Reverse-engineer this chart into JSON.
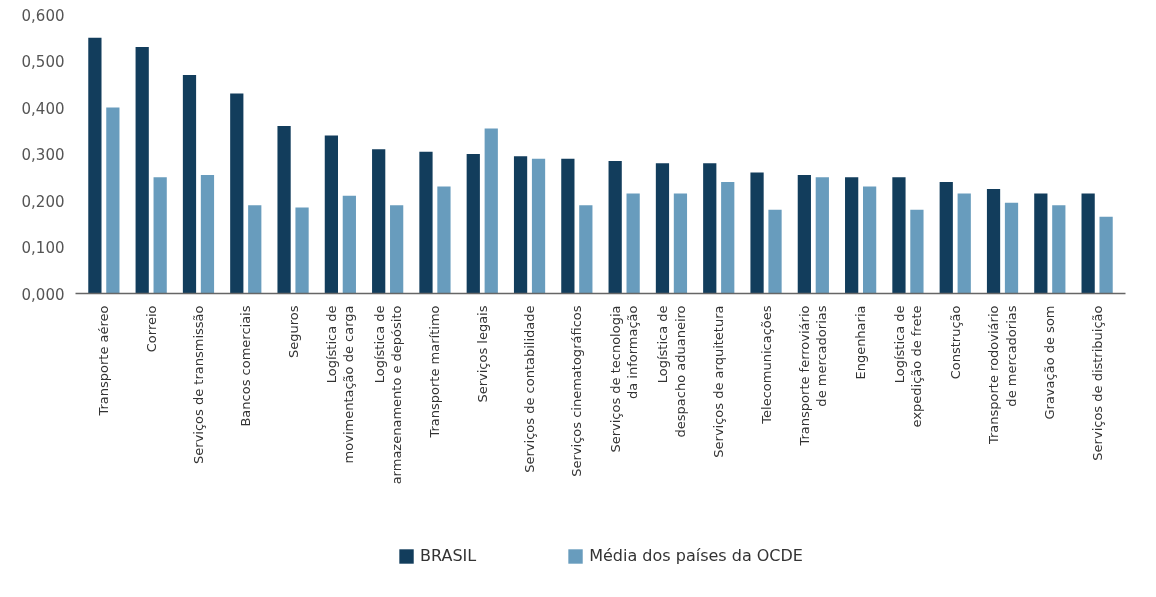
{
  "chart_data": {
    "type": "bar",
    "categories": [
      "Transporte aéreo",
      "Correio",
      "Serviços de transmissão",
      "Bancos comerciais",
      "Seguros",
      "Logística de\nmovimentação de carga",
      "Logística de\narmazenamento e depósito",
      "Transporte marítimo",
      "Serviços legais",
      "Serviços de contabilidade",
      "Serviços cinematográficos",
      "Serviços de tecnologia\nda informação",
      "Logística de\ndespacho aduaneiro",
      "Serviços de arquitetura",
      "Telecomunicações",
      "Transporte ferroviário\nde mercadorias",
      "Engenharia",
      "Logística de\nexpedição de frete",
      "Construção",
      "Transporte rodoviário\nde mercadorias",
      "Gravação de som",
      "Serviços de distribuição"
    ],
    "series": [
      {
        "name": "BRASIL",
        "color": "#123d5c",
        "values": [
          0.55,
          0.53,
          0.47,
          0.43,
          0.36,
          0.34,
          0.31,
          0.305,
          0.3,
          0.295,
          0.29,
          0.285,
          0.28,
          0.28,
          0.26,
          0.255,
          0.25,
          0.25,
          0.24,
          0.225,
          0.215,
          0.215
        ]
      },
      {
        "name": "Média dos países da OCDE",
        "color": "#689cbd",
        "values": [
          0.4,
          0.25,
          0.255,
          0.19,
          0.185,
          0.21,
          0.19,
          0.23,
          0.355,
          0.29,
          0.19,
          0.215,
          0.215,
          0.24,
          0.18,
          0.25,
          0.23,
          0.18,
          0.215,
          0.195,
          0.19,
          0.165
        ]
      }
    ],
    "ylim": [
      0,
      0.6
    ],
    "yticks": [
      {
        "value": 0,
        "label": "0,000"
      },
      {
        "value": 0.1,
        "label": "0,100"
      },
      {
        "value": 0.2,
        "label": "0,200"
      },
      {
        "value": 0.3,
        "label": "0,300"
      },
      {
        "value": 0.4,
        "label": "0,400"
      },
      {
        "value": 0.5,
        "label": "0,500"
      },
      {
        "value": 0.6,
        "label": "0,600"
      }
    ],
    "grid": false,
    "legend": "bottom"
  }
}
